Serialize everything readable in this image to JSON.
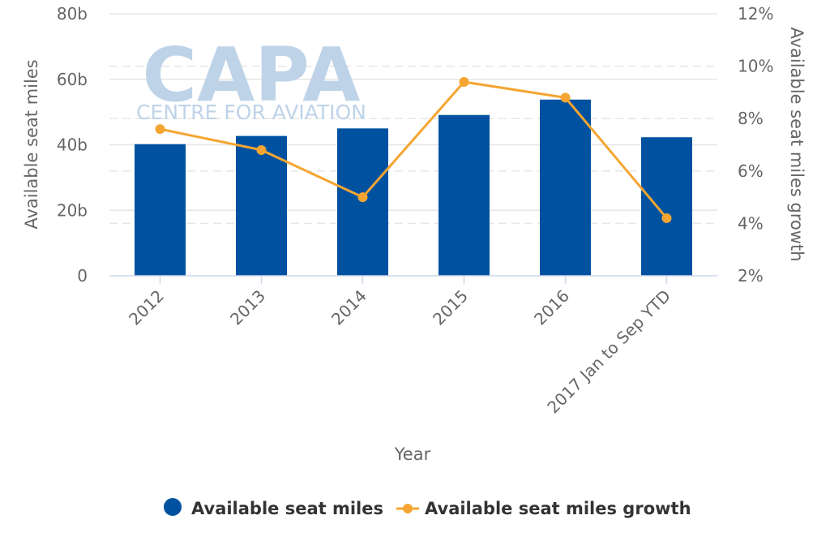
{
  "watermark": {
    "brand": "CAPA",
    "subtitle": "CENTRE FOR AVIATION",
    "color": "#bfd3e8"
  },
  "chart_data": {
    "type": "bar",
    "title": "",
    "xlabel": "Year",
    "ylabel": "Available seat miles",
    "y2label": "Available seat miles growth",
    "categories": [
      "2012",
      "2013",
      "2014",
      "2015",
      "2016",
      "2017 Jan to Sep YTD"
    ],
    "series": [
      {
        "name": "Available seat miles",
        "type": "bar",
        "axis": "left",
        "color": "#0052a0",
        "values": [
          40.2,
          42.7,
          45.0,
          49.1,
          53.8,
          42.3
        ]
      },
      {
        "name": "Available seat miles growth",
        "type": "line",
        "axis": "right",
        "color": "#f5a532",
        "values": [
          7.6,
          6.8,
          5.0,
          9.4,
          8.8,
          4.2
        ]
      }
    ],
    "ylim": [
      0,
      80
    ],
    "y2lim": [
      2,
      12
    ],
    "yticks": [
      "0",
      "20b",
      "40b",
      "60b",
      "80b"
    ],
    "y2ticks": [
      "2%",
      "4%",
      "6%",
      "8%",
      "10%",
      "12%"
    ],
    "grid": true,
    "legend_position": "bottom-center"
  }
}
